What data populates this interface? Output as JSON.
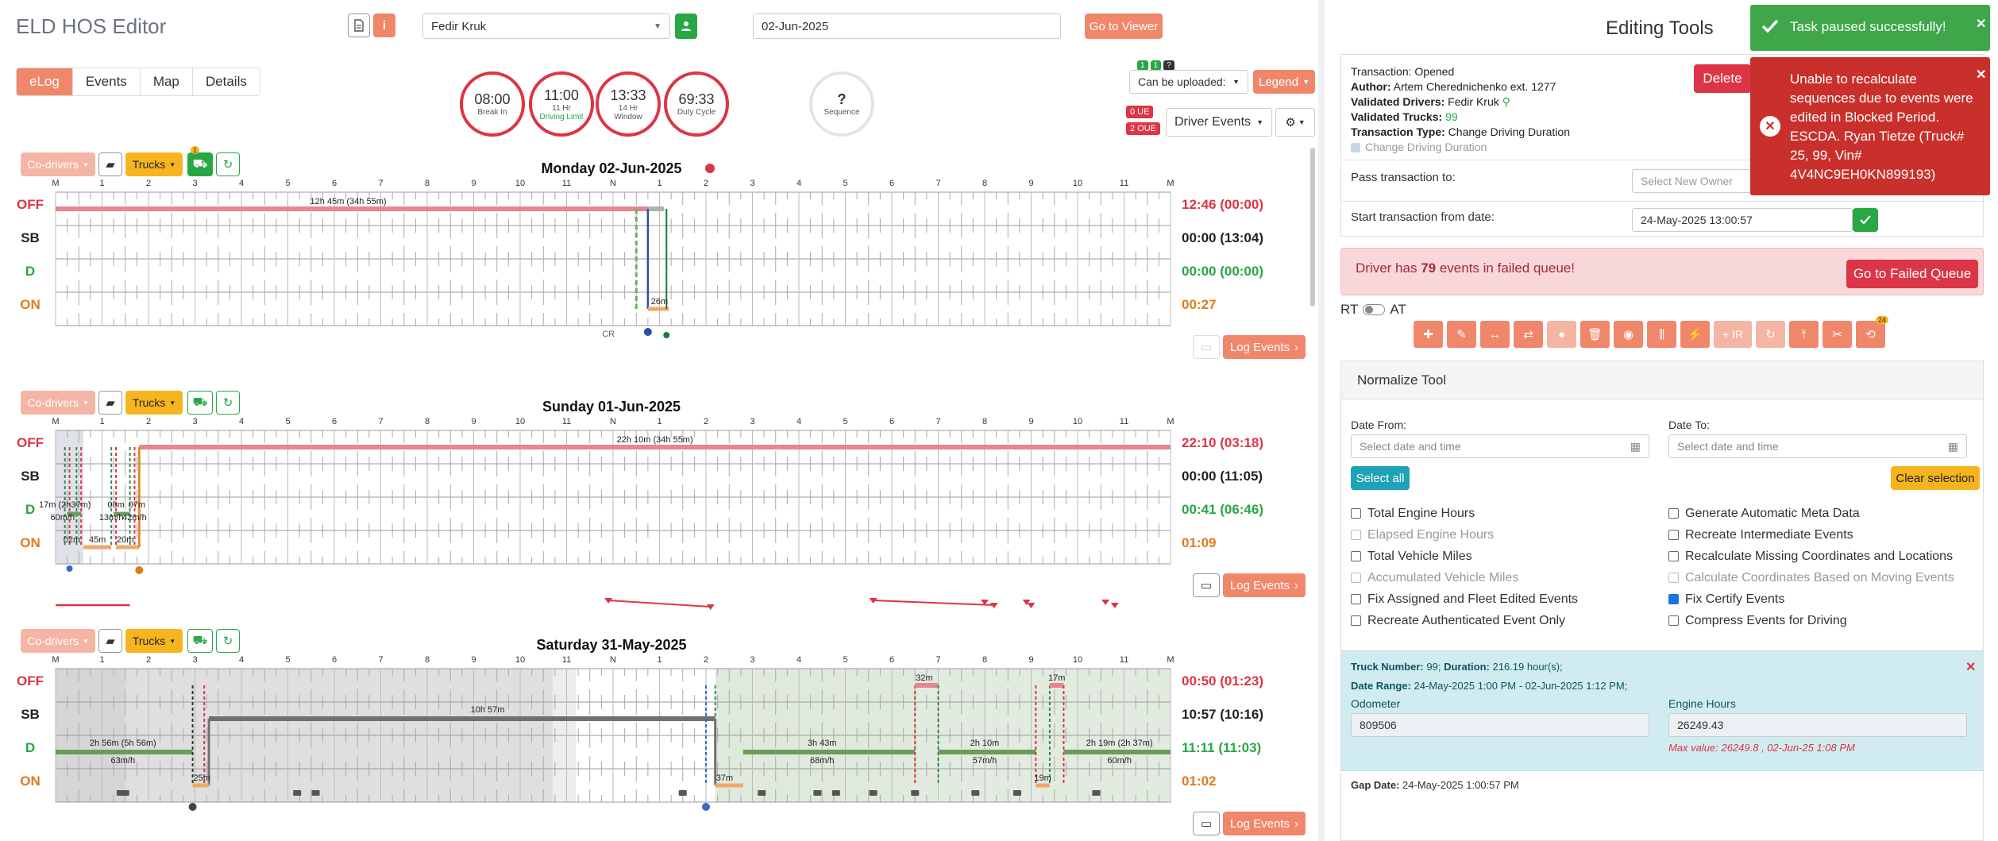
{
  "app": {
    "title": "ELD HOS Editor"
  },
  "header": {
    "driver": "Fedir Kruk",
    "date": "02-Jun-2025",
    "go_viewer": "Go to Viewer",
    "doc_icon": "document-icon",
    "info_icon": "info-icon"
  },
  "tabs": [
    "eLog",
    "Events",
    "Map",
    "Details"
  ],
  "clocks": [
    {
      "value": "08:00",
      "label": "Break In"
    },
    {
      "value": "11:00",
      "label": "11 Hr",
      "label2": "Driving Limit"
    },
    {
      "value": "13:33",
      "label": "14 Hr",
      "label2": "Window"
    },
    {
      "value": "69:33",
      "label": "Duty Cycle"
    }
  ],
  "sequence": {
    "value": "?",
    "label": "Sequence"
  },
  "controls": {
    "upload_badges": [
      "1",
      "1",
      "?"
    ],
    "upload_select": "Can be uploaded:",
    "legend": "Legend",
    "ue_badge": "0 UE",
    "oue_badge": "2 OUE",
    "driver_events": "Driver Events"
  },
  "grid": {
    "hours": [
      "M",
      "1",
      "2",
      "3",
      "4",
      "5",
      "6",
      "7",
      "8",
      "9",
      "10",
      "11",
      "N",
      "1",
      "2",
      "3",
      "4",
      "5",
      "6",
      "7",
      "8",
      "9",
      "10",
      "11",
      "M"
    ],
    "statuses": [
      "OFF",
      "SB",
      "D",
      "ON"
    ],
    "codrivers": "Co-drivers",
    "trucks": "Trucks",
    "log_events": "Log Events",
    "cr": "CR"
  },
  "days": [
    {
      "title": "Monday 02-Jun-2025",
      "totals": [
        "12:46 (00:00)",
        "00:00 (13:04)",
        "00:00 (00:00)",
        "00:27"
      ],
      "labels": {
        "off": "12h 45m (34h 55m)",
        "on": "26m"
      },
      "badge": "1"
    },
    {
      "title": "Sunday 01-Jun-2025",
      "totals": [
        "22:10 (03:18)",
        "00:00 (11:05)",
        "00:41 (06:46)",
        "01:09"
      ],
      "labels": {
        "off": "22h 10m (34h 55m)",
        "d1": "17m (2h37m)",
        "d2": "08m",
        "d3": "07m",
        "d4": "60m/h",
        "d5": "13m/h",
        "d6": "42m/h",
        "on1": "02m",
        "on2": "45m",
        "on3": "20m"
      }
    },
    {
      "title": "Saturday 31-May-2025",
      "totals": [
        "00:50 (01:23)",
        "10:57 (10:16)",
        "11:11 (11:03)",
        "01:02"
      ],
      "labels": {
        "sb": "10h 57m",
        "d1": "2h 56m (5h 56m)",
        "d1s": "63m/h",
        "d2": "3h 43m",
        "d2s": "68m/h",
        "d3": "2h 10m",
        "d3s": "57m/h",
        "d4": "2h 19m (2h 37m)",
        "d4s": "60m/h",
        "off1": "32m",
        "off2": "17m",
        "on1": "25m",
        "on2": "37m",
        "on3": "19m"
      }
    }
  ],
  "editing": {
    "title": "Editing Tools",
    "transaction": "Opened",
    "author": "Artem Cherednichenko ext. 1277",
    "validated_drivers": "Fedir Kruk",
    "validated_trucks": "99",
    "transaction_type": "Change Driving Duration",
    "change_driving": "Change Driving Duration",
    "delete": "Delete",
    "pass_label": "Pass transaction to:",
    "pass_placeholder": "Select New Owner",
    "start_label": "Start transaction from date:",
    "start_value": "24-May-2025 13:00:57",
    "failed_text_pre": "Driver has ",
    "failed_count": "79",
    "failed_text_post": " events in failed queue!",
    "failed_btn": "Go to Failed Queue",
    "rt": "RT",
    "at": "AT",
    "ir": "+ IR",
    "tool_badge": "24"
  },
  "normalize": {
    "title": "Normalize Tool",
    "date_from": "Date From:",
    "date_to": "Date To:",
    "placeholder": "Select date and time",
    "select_all": "Select all",
    "clear": "Clear selection",
    "left": [
      {
        "label": "Total Engine Hours",
        "on": false,
        "dis": false
      },
      {
        "label": "Elapsed Engine Hours",
        "on": false,
        "dis": true
      },
      {
        "label": "Total Vehicle Miles",
        "on": false,
        "dis": false
      },
      {
        "label": "Accumulated Vehicle Miles",
        "on": false,
        "dis": true
      },
      {
        "label": "Fix Assigned and Fleet Edited Events",
        "on": false,
        "dis": false
      },
      {
        "label": "Recreate Authenticated Event Only",
        "on": false,
        "dis": false
      }
    ],
    "right": [
      {
        "label": "Generate Automatic Meta Data",
        "on": false,
        "dis": false
      },
      {
        "label": "Recreate Intermediate Events",
        "on": false,
        "dis": false
      },
      {
        "label": "Recalculate Missing Coordinates and Locations",
        "on": false,
        "dis": false
      },
      {
        "label": "Calculate Coordinates Based on Moving Events",
        "on": false,
        "dis": true
      },
      {
        "label": "Fix Certify Events",
        "on": true,
        "dis": false
      },
      {
        "label": "Compress Events for Driving",
        "on": false,
        "dis": false
      }
    ]
  },
  "truckinfo": {
    "truck_label": "Truck Number:",
    "truck": "99",
    "duration_label": "Duration:",
    "duration": "216.19 hour(s);",
    "range_label": "Date Range:",
    "range": "24-May-2025 1:00 PM - 02-Jun-2025 1:12 PM;",
    "odometer_label": "Odometer",
    "odometer": "809506",
    "engine_label": "Engine Hours",
    "engine": "26249.43",
    "max_value": "Max value: 26249.8 , 02-Jun-25 1:08 PM",
    "gap_label": "Gap Date:",
    "gap": "24-May-2025 1:00:57 PM"
  },
  "toasts": {
    "success": "Task paused successfully!",
    "error": "Unable to recalculate sequences due to events were edited in Blocked Period. ESCDA. Ryan Tietze (Truck# 25, 99, Vin# 4V4NC9EH0KN899193)"
  },
  "colors": {
    "accent": "#f0876b",
    "off": "#e8868e",
    "d": "#6a9c5c",
    "on": "#f0a868",
    "sb": "#707070"
  }
}
